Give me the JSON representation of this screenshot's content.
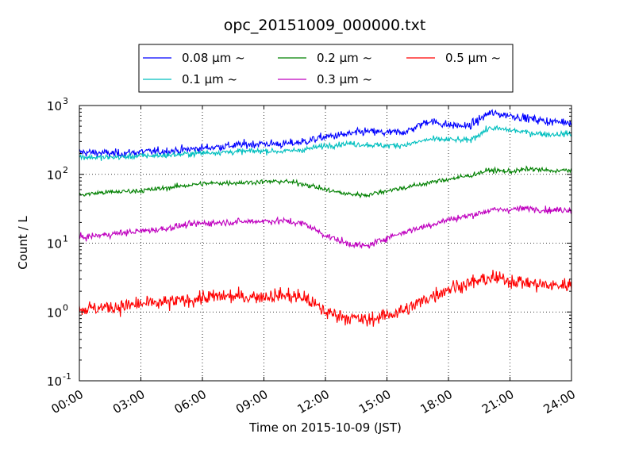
{
  "chart_data": {
    "type": "line",
    "title": "opc_20151009_000000.txt",
    "xlabel": "Time on 2015-10-09 (JST)",
    "ylabel": "Count / L",
    "yscale": "log",
    "ylim": [
      0.1,
      1000
    ],
    "xlim": [
      "00:00",
      "24:00"
    ],
    "grid": true,
    "legend_position": "top-center, outside plot, 3 columns",
    "x_ticks": [
      "00:00",
      "03:00",
      "06:00",
      "09:00",
      "12:00",
      "15:00",
      "18:00",
      "21:00",
      "24:00"
    ],
    "y_ticks": [
      {
        "base": "10",
        "exp": "-1"
      },
      {
        "base": "10",
        "exp": "0"
      },
      {
        "base": "10",
        "exp": "1"
      },
      {
        "base": "10",
        "exp": "2"
      },
      {
        "base": "10",
        "exp": "3"
      }
    ],
    "x_hours": [
      0,
      1,
      2,
      3,
      4,
      5,
      6,
      7,
      8,
      9,
      10,
      11,
      12,
      13,
      14,
      15,
      16,
      17,
      18,
      19,
      20,
      21,
      22,
      23,
      24
    ],
    "series": [
      {
        "name": "0.08 μm ~",
        "color": "#0000ff",
        "noise": 0.05,
        "values": [
          210,
          205,
          200,
          212,
          215,
          225,
          240,
          255,
          270,
          280,
          275,
          300,
          350,
          380,
          420,
          400,
          420,
          600,
          520,
          500,
          780,
          720,
          640,
          580,
          580
        ]
      },
      {
        "name": "0.1 μm ~",
        "color": "#00bfbf",
        "noise": 0.035,
        "values": [
          180,
          175,
          178,
          185,
          188,
          195,
          205,
          210,
          215,
          220,
          215,
          230,
          260,
          280,
          270,
          260,
          270,
          320,
          320,
          310,
          470,
          440,
          400,
          380,
          390
        ]
      },
      {
        "name": "0.2 μm ~",
        "color": "#008000",
        "noise": 0.03,
        "values": [
          50,
          54,
          56,
          58,
          62,
          68,
          73,
          75,
          76,
          78,
          79,
          72,
          60,
          52,
          50,
          58,
          65,
          75,
          85,
          95,
          115,
          110,
          120,
          112,
          115
        ]
      },
      {
        "name": "0.3 μm ~",
        "color": "#bf00bf",
        "noise": 0.04,
        "values": [
          12,
          13,
          14,
          15,
          16,
          18,
          19.5,
          20,
          20.5,
          21,
          21,
          19,
          13,
          10,
          9,
          12,
          15,
          18,
          22,
          25,
          30,
          31,
          32,
          30,
          31
        ]
      },
      {
        "name": "0.5 μm ~",
        "color": "#ff0000",
        "noise": 0.09,
        "values": [
          1.1,
          1.15,
          1.2,
          1.3,
          1.35,
          1.45,
          1.6,
          1.7,
          1.65,
          1.7,
          1.75,
          1.6,
          1.0,
          0.85,
          0.75,
          0.9,
          1.1,
          1.6,
          2.2,
          2.6,
          3.1,
          2.9,
          2.6,
          2.4,
          2.5
        ]
      }
    ]
  }
}
